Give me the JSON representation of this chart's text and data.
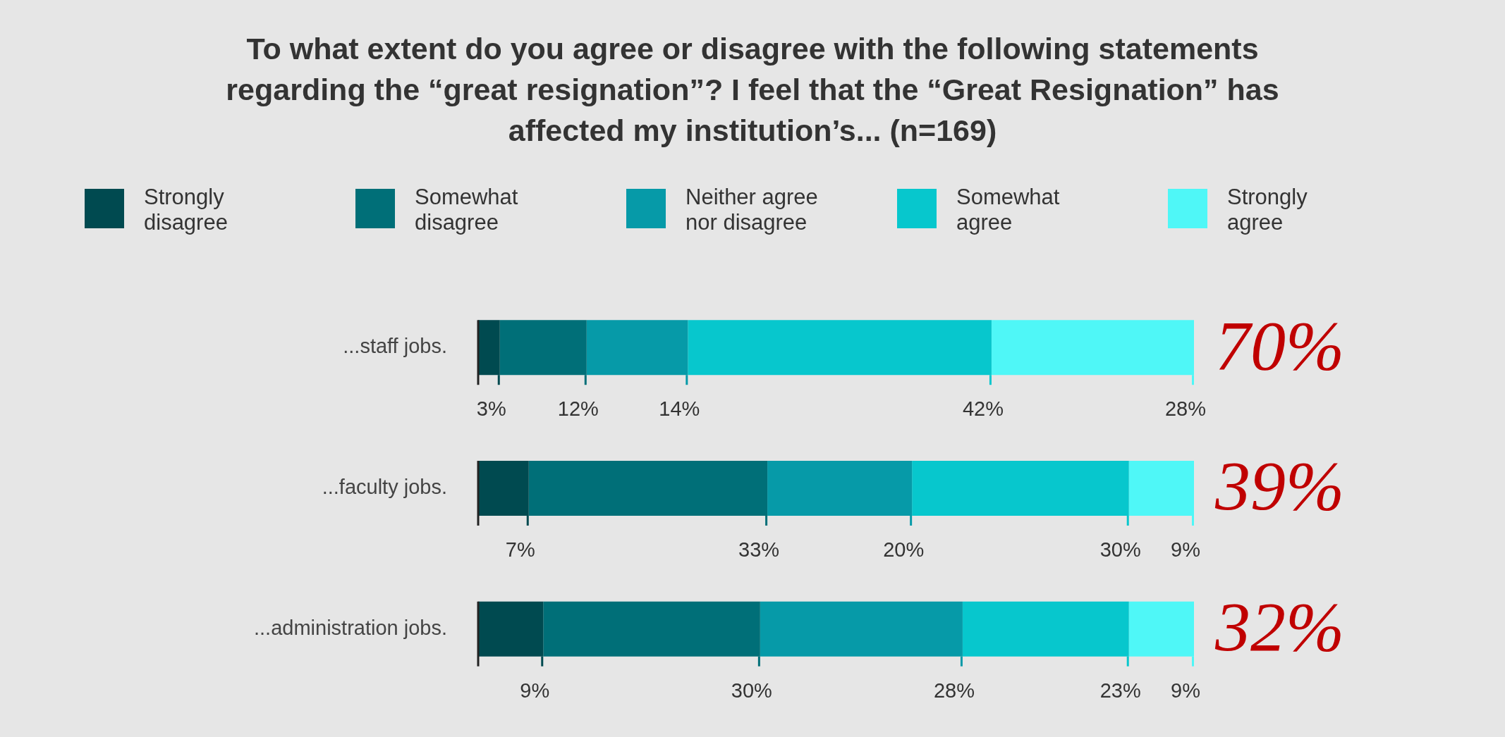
{
  "chart_data": {
    "type": "bar",
    "orientation": "horizontal",
    "stacked": true,
    "title": "To what extent do you agree or disagree with the following statements regarding the “great resignation”? I feel that the “Great Resignation” has affected my institution’s... (n=169)",
    "categories": [
      "...staff jobs.",
      "...faculty jobs.",
      "...administration jobs."
    ],
    "series": [
      {
        "name": "Strongly disagree",
        "color": "#004a50",
        "values": [
          3,
          7,
          9
        ],
        "value_labels": [
          "3%",
          "7%",
          "9%"
        ]
      },
      {
        "name": "Somewhat disagree",
        "color": "#006f78",
        "values": [
          12,
          33,
          30
        ],
        "value_labels": [
          "12%",
          "33%",
          "30%"
        ]
      },
      {
        "name": "Neither agree nor disagree",
        "color": "#069aa8",
        "values": [
          14,
          20,
          28
        ],
        "value_labels": [
          "14%",
          "20%",
          "28%"
        ]
      },
      {
        "name": "Somewhat agree",
        "color": "#07c7cd",
        "values": [
          42,
          30,
          23
        ],
        "value_labels": [
          "42%",
          "30%",
          "23%"
        ]
      },
      {
        "name": "Strongly agree",
        "color": "#4ff7f7",
        "values": [
          28,
          9,
          9
        ],
        "value_labels": [
          "28%",
          "9%",
          "9%"
        ]
      }
    ],
    "xlim": [
      0,
      99
    ],
    "tick_labels": "y",
    "grid": false,
    "legend": "top",
    "ref_lines": [
      {
        "axis": "x",
        "value": 0,
        "color": "#222222"
      }
    ],
    "annotations": [
      "70%",
      "39%",
      "32%"
    ]
  }
}
